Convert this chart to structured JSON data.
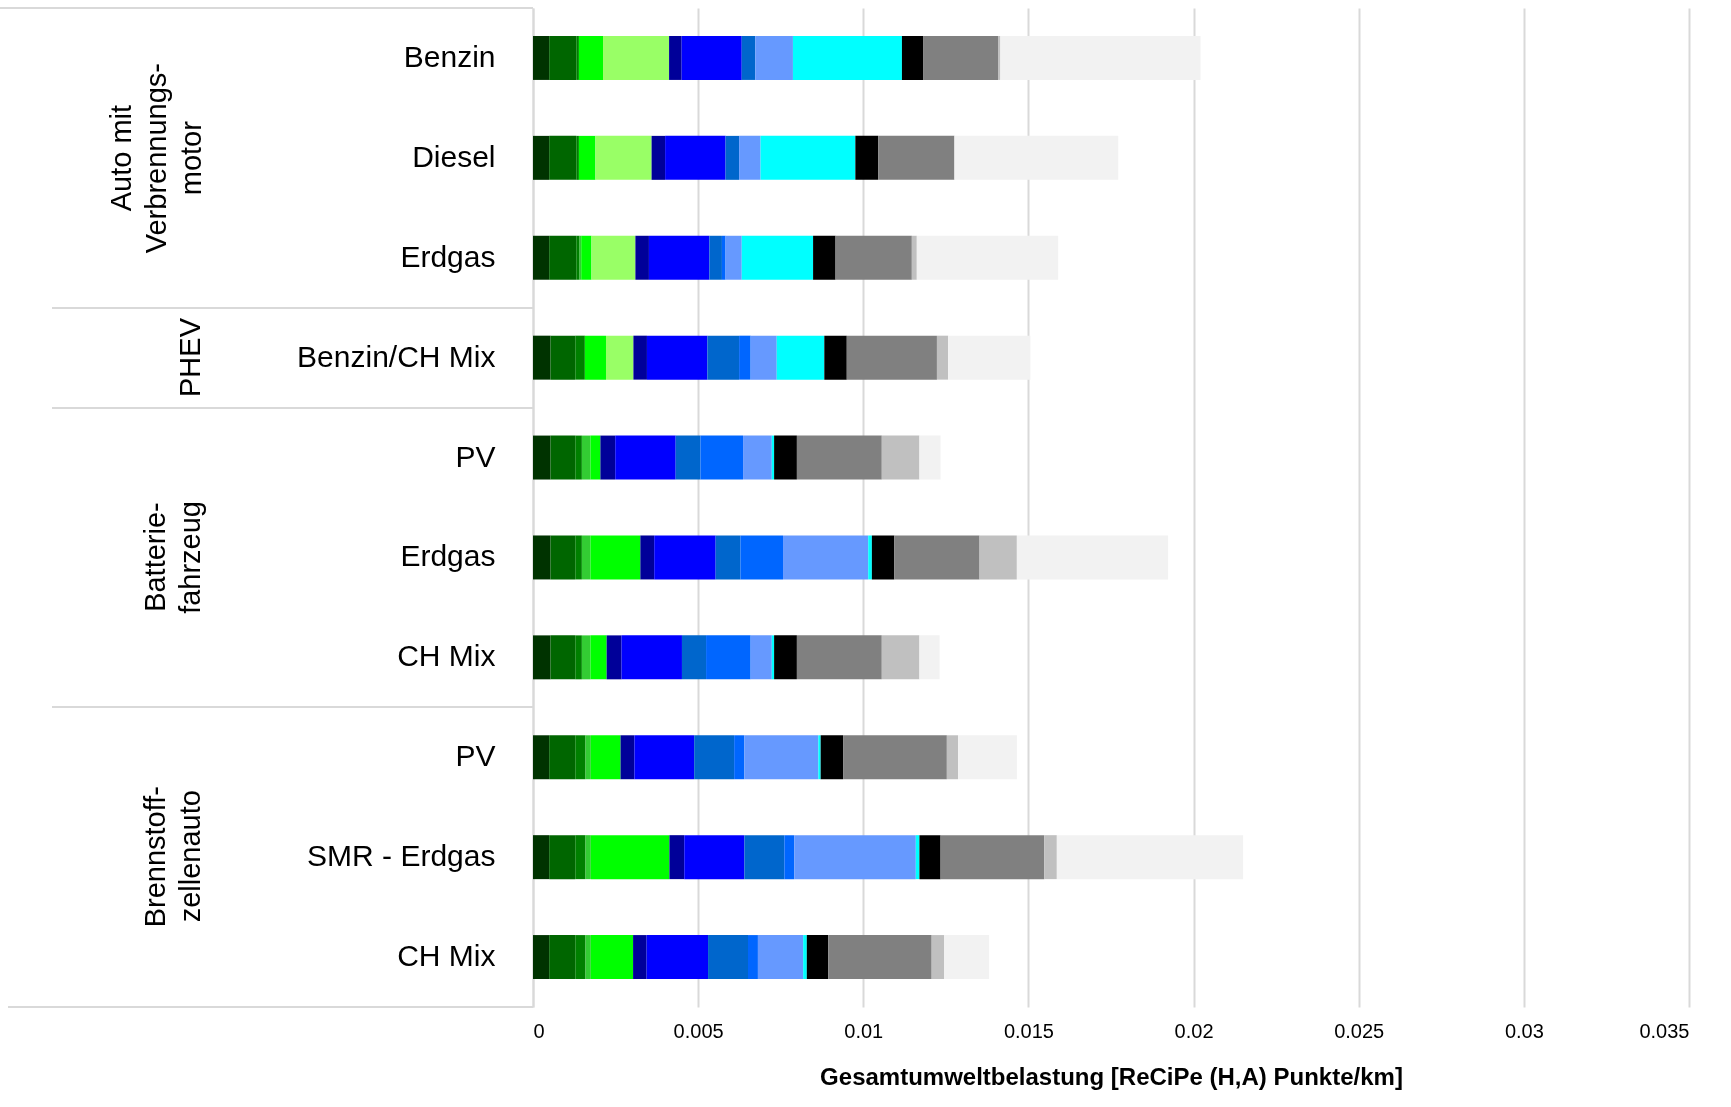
{
  "chart_data": {
    "type": "bar",
    "orientation": "horizontal",
    "stacked": true,
    "grid": "x",
    "xlabel": "Gesamtumweltbelastung [ReCiPe (H,A) Punkte/km]",
    "categories": [
      "Benzin",
      "Diesel",
      "Erdgas",
      "Benzin/CH Mix",
      "PV",
      "Erdgas",
      "CH Mix",
      "PV",
      "SMR - Erdgas",
      "CH Mix"
    ],
    "xlim": [
      0,
      0.035
    ],
    "xticks": [
      0,
      0.005,
      0.01,
      0.015,
      0.02,
      0.025,
      0.03,
      0.035
    ],
    "annotations": [
      "Auto mit\nVerbrennungs-\nmotor",
      "PHEV",
      "Batterie-\nfahrzeug",
      "Brennstoff-\nzellenauto"
    ],
    "series": [
      {
        "color": "#003300",
        "values": [
          0.00049,
          0.00049,
          0.00049,
          0.00053,
          0.00053,
          0.00053,
          0.00053,
          0.00049,
          0.00049,
          0.00049
        ]
      },
      {
        "color": "#006600",
        "values": [
          0.00082,
          0.00082,
          0.00082,
          0.00075,
          0.00075,
          0.00075,
          0.00075,
          0.00079,
          0.00079,
          0.00079
        ]
      },
      {
        "color": "#008000",
        "values": [
          8e-05,
          8e-05,
          0.0001,
          0.00029,
          0.0002,
          0.0002,
          0.0002,
          0.00031,
          0.00031,
          0.00031
        ]
      },
      {
        "color": "#33cc33",
        "values": [
          0,
          0,
          5e-05,
          0,
          0.00026,
          0.00026,
          0.00026,
          0.00016,
          0.00016,
          0.00016
        ]
      },
      {
        "color": "#00ff00",
        "values": [
          0.00073,
          0.0005,
          0.00031,
          0.00064,
          0.0003,
          0.00151,
          0.00049,
          0.0009,
          0.00238,
          0.00128
        ]
      },
      {
        "color": "#99ff66",
        "values": [
          0.002,
          0.0017,
          0.00133,
          0.00083,
          0,
          0,
          0,
          0,
          0,
          0
        ]
      },
      {
        "color": "#000099",
        "values": [
          0.00038,
          0.00041,
          0.00041,
          0.00041,
          0.00045,
          0.00042,
          0.00045,
          0.00042,
          0.00045,
          0.00041
        ]
      },
      {
        "color": "#0000ff",
        "values": [
          0.00182,
          0.00183,
          0.00183,
          0.00183,
          0.00183,
          0.00186,
          0.00183,
          0.00181,
          0.00182,
          0.00186
        ]
      },
      {
        "color": "#0066cc",
        "values": [
          0.00041,
          0.00041,
          0.00038,
          0.00096,
          0.00075,
          0.00075,
          0.00073,
          0.00121,
          0.00121,
          0.00121
        ]
      },
      {
        "color": "#0066ff",
        "values": [
          0,
          0,
          0.00011,
          0.00035,
          0.00129,
          0.00129,
          0.00135,
          0.00031,
          0.0003,
          0.0003
        ]
      },
      {
        "color": "#6699ff",
        "values": [
          0.00114,
          0.00065,
          0.00049,
          0.00079,
          0.00087,
          0.00258,
          0.00064,
          0.00224,
          0.00368,
          0.00137
        ]
      },
      {
        "color": "#00ffff",
        "values": [
          0.0033,
          0.00287,
          0.00216,
          0.00144,
          7e-05,
          0.00011,
          7e-05,
          7e-05,
          0.00011,
          0.00011
        ]
      },
      {
        "color": "#000000",
        "values": [
          0.00064,
          0.00069,
          0.00068,
          0.00068,
          0.00069,
          0.00068,
          0.00069,
          0.00068,
          0.00064,
          0.00065
        ]
      },
      {
        "color": "#808080",
        "values": [
          0.00227,
          0.00231,
          0.00231,
          0.00273,
          0.00257,
          0.00258,
          0.00257,
          0.00314,
          0.00314,
          0.00313
        ]
      },
      {
        "color": "#c0c0c0",
        "values": [
          7e-05,
          null,
          0.00015,
          0.00034,
          0.00114,
          0.00113,
          0.00114,
          0.00034,
          0.00038,
          0.00038
        ]
      },
      {
        "color": "#f2f2f2",
        "values": [
          0.00606,
          0.00496,
          0.00428,
          0.00249,
          0.00064,
          0.00458,
          0.00061,
          0.00178,
          0.00564,
          0.00136
        ]
      }
    ]
  }
}
